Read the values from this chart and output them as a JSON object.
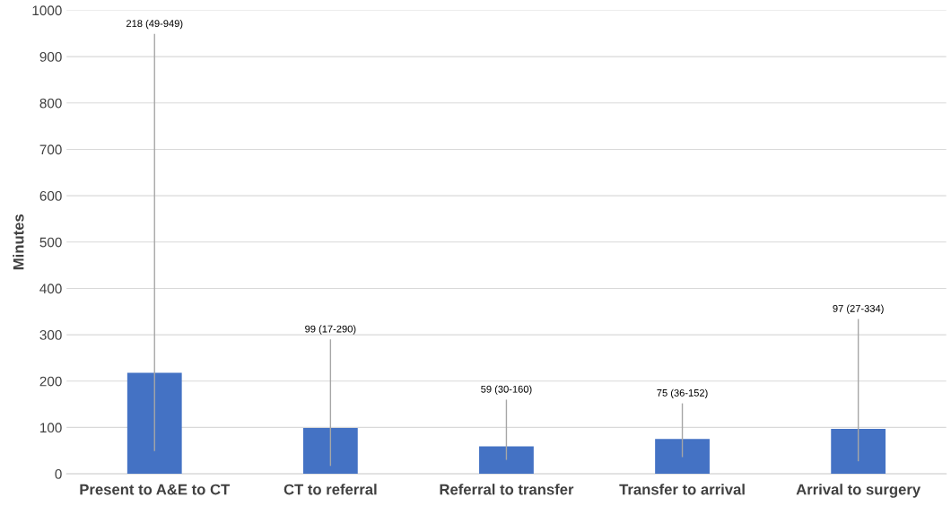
{
  "chart_data": {
    "type": "bar",
    "ylabel": "Minutes",
    "categories": [
      "Present to A&E to CT",
      "CT to referral",
      "Referral to transfer",
      "Transfer to arrival",
      "Arrival to surgery"
    ],
    "values": [
      218,
      99,
      59,
      75,
      97
    ],
    "errors": [
      [
        49,
        949
      ],
      [
        17,
        290
      ],
      [
        30,
        160
      ],
      [
        36,
        152
      ],
      [
        27,
        334
      ]
    ],
    "annotations": [
      {
        "text": "218 (49-949)",
        "x": "Present to A&E to CT",
        "y": 949
      },
      {
        "text": "99 (17-290)",
        "x": "CT to referral",
        "y": 290
      },
      {
        "text": "59 (30-160)",
        "x": "Referral to transfer",
        "y": 160
      },
      {
        "text": "75 (36-152)",
        "x": "Transfer to arrival",
        "y": 152
      },
      {
        "text": "97 (27-334)",
        "x": "Arrival to surgery",
        "y": 334
      }
    ],
    "color": "#4472c4",
    "ylim": [
      0,
      1000
    ],
    "yticks": [
      0,
      100,
      200,
      300,
      400,
      500,
      600,
      700,
      800,
      900,
      1000
    ],
    "grid": "y"
  }
}
